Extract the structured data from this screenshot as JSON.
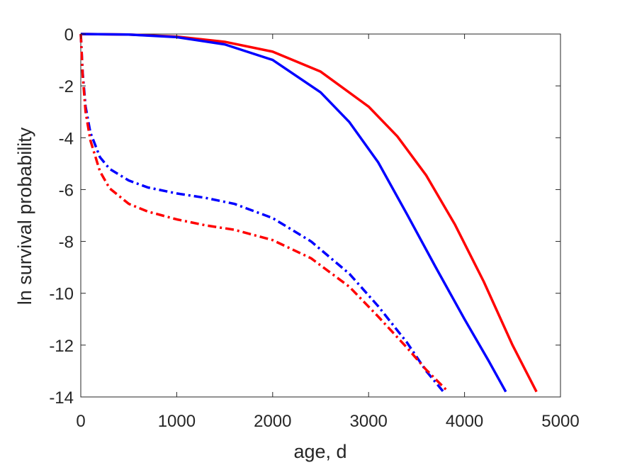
{
  "chart_data": {
    "type": "line",
    "title": "",
    "xlabel": "age, d",
    "ylabel": "ln survival probability",
    "xlim": [
      0,
      5000
    ],
    "ylim": [
      -14,
      0
    ],
    "xticks": [
      0,
      1000,
      2000,
      3000,
      4000,
      5000
    ],
    "yticks": [
      0,
      -2,
      -4,
      -6,
      -8,
      -10,
      -12,
      -14
    ],
    "xtick_labels": [
      "0",
      "1000",
      "2000",
      "3000",
      "4000",
      "5000"
    ],
    "ytick_labels": [
      "0",
      "-2",
      "-4",
      "-6",
      "-8",
      "-10",
      "-12",
      "-14"
    ],
    "grid": false,
    "legend": "none",
    "series": [
      {
        "color": "#ff0000",
        "style": "solid",
        "x": [
          0,
          500,
          1000,
          1500,
          2000,
          2500,
          3000,
          3300,
          3600,
          3900,
          4200,
          4500,
          4750
        ],
        "y": [
          0,
          -0.02,
          -0.1,
          -0.3,
          -0.68,
          -1.45,
          -2.8,
          -3.95,
          -5.45,
          -7.35,
          -9.55,
          -12.0,
          -13.8
        ]
      },
      {
        "color": "#0000ff",
        "style": "solid",
        "x": [
          0,
          500,
          1000,
          1500,
          2000,
          2500,
          2800,
          3100,
          3400,
          3700,
          4000,
          4250,
          4430
        ],
        "y": [
          0,
          -0.02,
          -0.12,
          -0.4,
          -1.0,
          -2.25,
          -3.4,
          -4.95,
          -6.95,
          -9.0,
          -11.0,
          -12.6,
          -13.8
        ]
      },
      {
        "color": "#0000ff",
        "style": "dashdot",
        "x": [
          0,
          20,
          50,
          100,
          200,
          300,
          500,
          700,
          1000,
          1300,
          1600,
          2000,
          2400,
          2800,
          3100,
          3400,
          3600,
          3780
        ],
        "y": [
          0,
          -1.5,
          -2.8,
          -3.8,
          -4.75,
          -5.2,
          -5.65,
          -5.92,
          -6.15,
          -6.32,
          -6.55,
          -7.1,
          -8.0,
          -9.25,
          -10.5,
          -11.9,
          -13.0,
          -13.8
        ]
      },
      {
        "color": "#ff0000",
        "style": "dashdot",
        "x": [
          0,
          20,
          50,
          100,
          200,
          300,
          500,
          700,
          1000,
          1300,
          1600,
          2000,
          2400,
          2800,
          3100,
          3400,
          3600,
          3830
        ],
        "y": [
          0,
          -1.6,
          -3.0,
          -4.1,
          -5.3,
          -5.95,
          -6.55,
          -6.85,
          -7.15,
          -7.38,
          -7.55,
          -7.95,
          -8.65,
          -9.75,
          -10.9,
          -12.1,
          -12.95,
          -13.8
        ]
      }
    ]
  }
}
